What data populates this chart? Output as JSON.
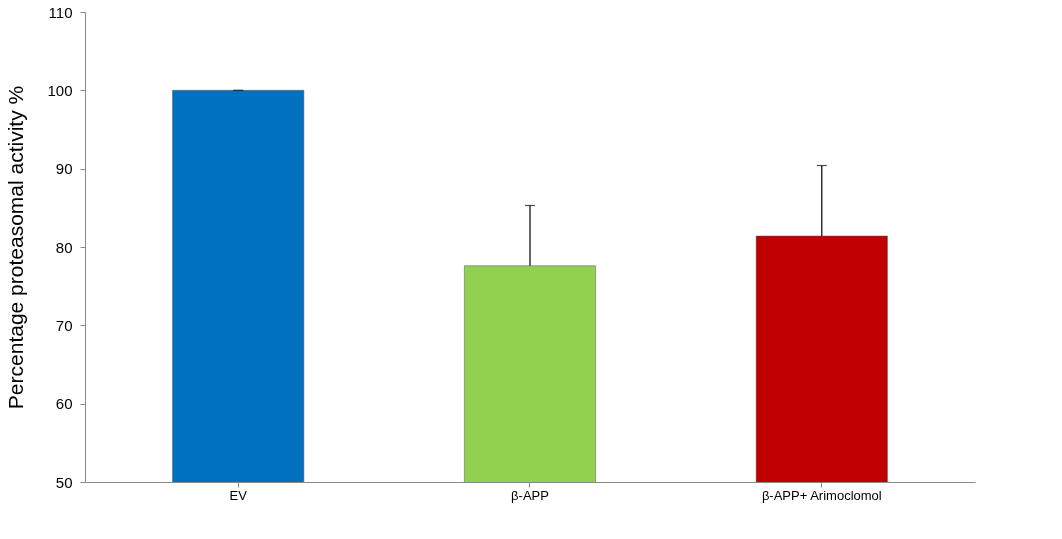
{
  "chart_data": {
    "type": "bar",
    "ylabel": "Percentage proteasomal activity %",
    "categories": [
      "EV",
      "β-APP",
      "β-APP+ Arimoclomol"
    ],
    "values": [
      100,
      77.6,
      81.4
    ],
    "colors": [
      "#0070c0",
      "#92d050",
      "#c00000"
    ],
    "errors": [
      [
        100,
        100
      ],
      [
        77.6,
        85.3
      ],
      [
        81.4,
        90.4
      ]
    ],
    "ylim": [
      50,
      110
    ],
    "yticks": [
      50,
      60,
      70,
      80,
      90,
      100,
      110
    ],
    "grid": false
  }
}
